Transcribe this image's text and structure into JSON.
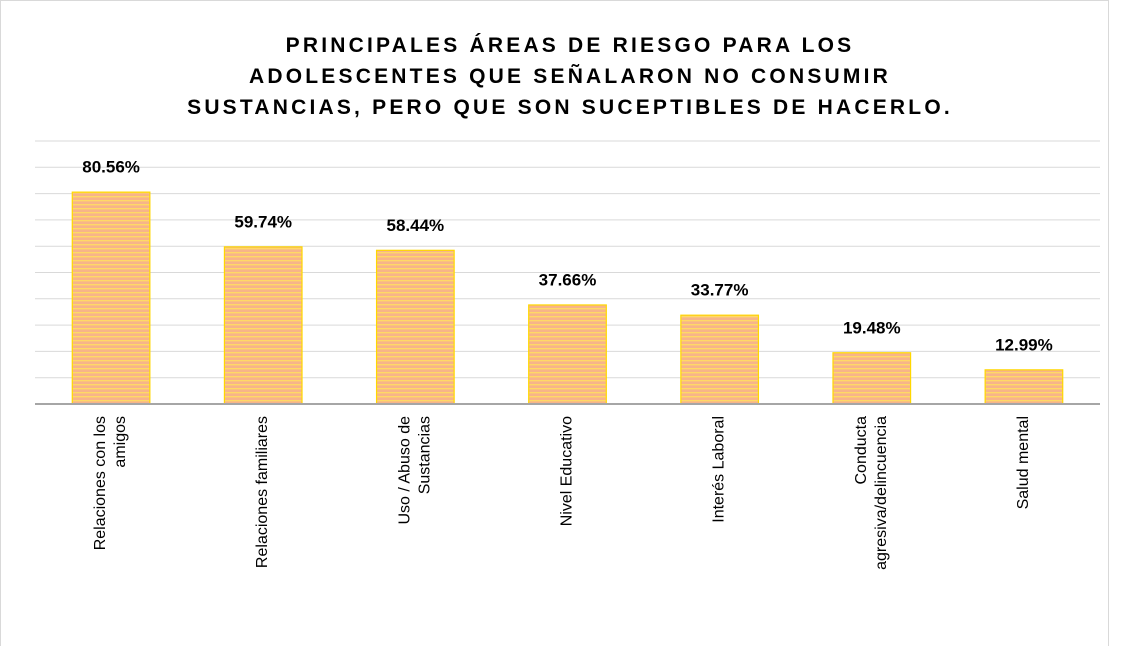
{
  "chart_data": {
    "type": "bar",
    "title": "PRINCIPALES ÁREAS DE RIESGO PARA LOS\nADOLESCENTES QUE SEÑALARON NO CONSUMIR\nSUSTANCIAS, PERO QUE SON SUCEPTIBLES DE HACERLO.",
    "categories": [
      "Relaciones con los\namigos",
      "Relaciones familiares",
      "Uso / Abuso de\nSustancias",
      "Nivel Educativo",
      "Interés Laboral",
      "Conducta\nagresiva/delincuencia",
      "Salud mental"
    ],
    "values": [
      80.56,
      59.74,
      58.44,
      37.66,
      33.77,
      19.48,
      12.99
    ],
    "value_labels": [
      "80.56%",
      "59.74%",
      "58.44%",
      "37.66%",
      "33.77%",
      "19.48%",
      "12.99%"
    ],
    "color": "#f7b48a",
    "stripe_color": "#ffd966",
    "edge_color": "#ffd700",
    "ylim": [
      0,
      100
    ],
    "yticks": [
      0,
      10,
      20,
      30,
      40,
      50,
      60,
      70,
      80,
      90,
      100
    ],
    "grid": true
  }
}
